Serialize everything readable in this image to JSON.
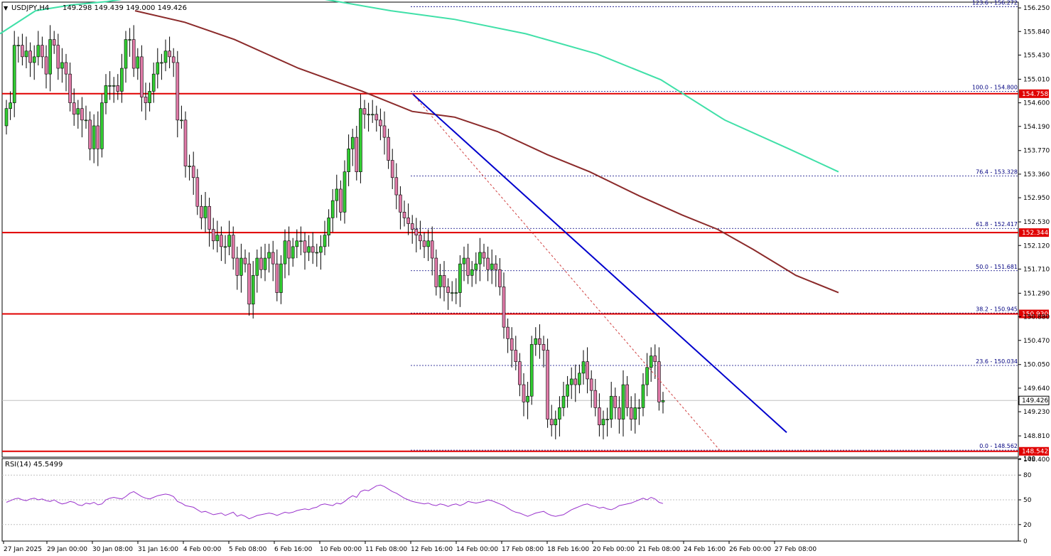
{
  "header": {
    "symbol": "USDJPY,H4",
    "ohlc": "149.298 149.439 149.000 149.426"
  },
  "colors": {
    "bull": "#32cd32",
    "bear": "#e07aa8",
    "ma_slow": "#40e0a8",
    "ma_mid": "#8b2a2a",
    "trend": "#0000cd",
    "fib_diag": "#d04040",
    "level": "#e00000",
    "rsi": "#9932cc"
  },
  "chart_data": [
    {
      "type": "candlestick",
      "title": "USDJPY,H4",
      "ylim": [
        148.44,
        156.35
      ],
      "y_ticks": [
        "156.250",
        "155.840",
        "155.430",
        "155.010",
        "154.600",
        "154.190",
        "153.770",
        "153.360",
        "152.950",
        "152.530",
        "152.120",
        "151.710",
        "151.290",
        "150.880",
        "150.470",
        "150.050",
        "149.640",
        "149.230",
        "148.810",
        "148.400"
      ],
      "x_ticks": [
        "27 Jan 2025",
        "29 Jan 00:00",
        "30 Jan 08:00",
        "31 Jan 16:00",
        "4 Feb 00:00",
        "5 Feb 08:00",
        "6 Feb 16:00",
        "10 Feb 00:00",
        "11 Feb 08:00",
        "12 Feb 16:00",
        "14 Feb 00:00",
        "17 Feb 08:00",
        "18 Feb 16:00",
        "20 Feb 00:00",
        "21 Feb 08:00",
        "24 Feb 16:00",
        "26 Feb 00:00",
        "27 Feb 08:00"
      ],
      "close": [
        154.5,
        154.6,
        155.6,
        155.6,
        155.4,
        155.5,
        155.3,
        155.4,
        155.6,
        155.4,
        155.1,
        155.7,
        155.6,
        155.2,
        155.3,
        155.1,
        154.6,
        154.4,
        154.5,
        154.3,
        154.3,
        153.8,
        154.2,
        153.8,
        154.6,
        154.9,
        154.9,
        154.9,
        154.8,
        155.2,
        155.7,
        155.7,
        155.2,
        155.4,
        154.7,
        154.6,
        154.8,
        155.1,
        155.3,
        155.3,
        155.5,
        155.4,
        155.3,
        154.3,
        154.3,
        153.5,
        153.5,
        153.3,
        152.8,
        152.6,
        152.8,
        152.4,
        152.2,
        152.3,
        152.1,
        152.1,
        152.3,
        151.9,
        151.6,
        151.9,
        151.8,
        151.1,
        151.6,
        151.9,
        151.7,
        151.9,
        152.0,
        151.8,
        151.3,
        151.8,
        152.2,
        151.9,
        152.1,
        152.2,
        152.2,
        152.0,
        152.1,
        152.0,
        152.0,
        152.1,
        152.3,
        152.6,
        152.9,
        153.1,
        152.7,
        153.4,
        153.8,
        154.0,
        153.4,
        154.5,
        154.4,
        154.4,
        154.4,
        154.3,
        154.2,
        154.0,
        153.6,
        153.3,
        153.0,
        152.7,
        152.6,
        152.5,
        152.4,
        152.3,
        152.2,
        152.1,
        152.2,
        151.9,
        151.4,
        151.6,
        151.4,
        151.3,
        151.3,
        151.3,
        151.8,
        151.9,
        151.6,
        151.7,
        151.8,
        152.0,
        151.9,
        151.7,
        151.8,
        151.7,
        151.4,
        150.7,
        150.5,
        150.3,
        150.1,
        149.7,
        149.4,
        149.5,
        150.4,
        150.5,
        150.4,
        150.3,
        149.1,
        149.0,
        149.1,
        149.3,
        149.5,
        149.7,
        149.8,
        149.7,
        149.9,
        150.1,
        149.8,
        149.6,
        149.3,
        149.0,
        149.1,
        149.1,
        149.5,
        149.3,
        149.1,
        149.7,
        149.3,
        149.1,
        149.3,
        149.3,
        149.7,
        150.0,
        150.2,
        150.1,
        149.4,
        149.426
      ],
      "series": [
        {
          "name": "",
          "type": "ma",
          "values": [
            [
              0,
              155.8
            ],
            [
              50,
              156.2
            ],
            [
              100,
              156.3
            ],
            [
              150,
              156.36
            ],
            [
              200,
              156.45
            ],
            [
              260,
              156.5
            ],
            [
              330,
              156.55
            ],
            [
              410,
              156.5
            ],
            [
              480,
              156.35
            ],
            [
              550,
              156.2
            ],
            [
              640,
              156.05
            ],
            [
              740,
              155.8
            ],
            [
              840,
              155.45
            ],
            [
              930,
              155.0
            ],
            [
              1020,
              154.3
            ],
            [
              1110,
              153.8
            ],
            [
              1180,
              153.4
            ]
          ]
        },
        {
          "name": "",
          "type": "ma",
          "values": [
            [
              190,
              156.2
            ],
            [
              260,
              156.0
            ],
            [
              330,
              155.7
            ],
            [
              420,
              155.2
            ],
            [
              510,
              154.8
            ],
            [
              580,
              154.45
            ],
            [
              640,
              154.35
            ],
            [
              700,
              154.1
            ],
            [
              770,
              153.7
            ],
            [
              830,
              153.4
            ],
            [
              900,
              152.98
            ],
            [
              960,
              152.65
            ],
            [
              1010,
              152.4
            ],
            [
              1060,
              152.05
            ],
            [
              1120,
              151.6
            ],
            [
              1180,
              151.3
            ]
          ]
        }
      ],
      "fib_levels": [
        {
          "label": "123.6 - 156.272",
          "value": 156.272
        },
        {
          "label": "100.0 - 154.800",
          "value": 154.8
        },
        {
          "label": "76.4 - 153.328",
          "value": 153.328
        },
        {
          "label": "61.8 - 152.417",
          "value": 152.417
        },
        {
          "label": "50.0 - 151.681",
          "value": 151.681
        },
        {
          "label": "38.2 - 150.945",
          "value": 150.945
        },
        {
          "label": "23.6 - 150.034",
          "value": 150.034
        },
        {
          "label": "0.0 - 148.562",
          "value": 148.562
        }
      ],
      "levels": [
        {
          "label": "154.758",
          "value": 154.758
        },
        {
          "label": "152.344",
          "value": 152.344
        },
        {
          "label": "150.930",
          "value": 150.93
        },
        {
          "label": "148.542",
          "value": 148.542
        }
      ],
      "current_price": "149.426",
      "trendline": [
        [
          154.76,
          580
        ],
        [
          148.87,
          1107
        ]
      ],
      "fib_diagonal": [
        [
          154.76,
          580
        ],
        [
          148.56,
          1013
        ]
      ]
    },
    {
      "type": "line",
      "title": "RSI(14) 45.5499",
      "ylim": [
        0,
        100
      ],
      "y_ticks": [
        "100",
        "80",
        "50",
        "20",
        "0"
      ],
      "values": [
        47,
        49,
        51,
        52,
        50,
        49,
        51,
        52,
        50,
        51,
        49,
        48,
        50,
        47,
        45,
        46,
        48,
        47,
        44,
        43,
        46,
        45,
        47,
        44,
        45,
        50,
        52,
        53,
        52,
        51,
        54,
        58,
        60,
        57,
        54,
        52,
        51,
        53,
        55,
        56,
        57,
        56,
        54,
        48,
        46,
        43,
        42,
        41,
        38,
        35,
        36,
        34,
        32,
        33,
        34,
        31,
        33,
        35,
        30,
        32,
        30,
        27,
        29,
        31,
        32,
        33,
        34,
        33,
        31,
        33,
        35,
        34,
        35,
        37,
        38,
        39,
        38,
        40,
        41,
        44,
        45,
        44,
        43,
        46,
        45,
        48,
        52,
        55,
        53,
        60,
        62,
        61,
        64,
        67,
        68,
        66,
        63,
        60,
        58,
        55,
        52,
        50,
        48,
        47,
        46,
        45,
        46,
        44,
        43,
        45,
        44,
        42,
        44,
        45,
        43,
        45,
        48,
        47,
        46,
        47,
        48,
        50,
        49,
        47,
        45,
        43,
        40,
        37,
        35,
        34,
        32,
        30,
        32,
        34,
        35,
        36,
        33,
        31,
        30,
        31,
        32,
        35,
        38,
        40,
        42,
        44,
        45,
        43,
        42,
        40,
        41,
        39,
        38,
        40,
        43,
        44,
        45,
        46,
        48,
        50,
        52,
        50,
        53,
        51,
        47,
        45.55
      ]
    }
  ]
}
